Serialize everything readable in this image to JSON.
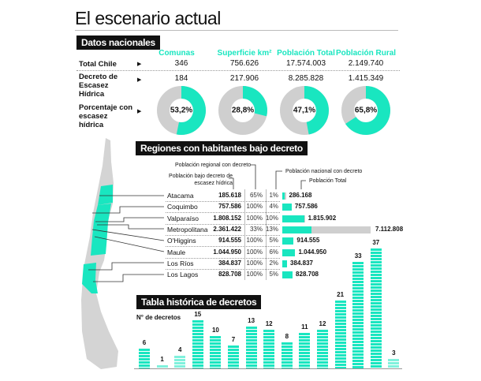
{
  "title": "El escenario actual",
  "national": {
    "label": "Datos nacionales",
    "headers": [
      "Comunas",
      "Superficie km²",
      "Población Total",
      "Población Rural"
    ],
    "rows": [
      {
        "label": "Total Chile",
        "values": [
          "346",
          "756.626",
          "17.574.003",
          "2.149.740"
        ]
      },
      {
        "label": "Decreto de Escasez Hídrica",
        "values": [
          "184",
          "217.906",
          "8.285.828",
          "1.415.349"
        ]
      }
    ],
    "pct_label": "Porcentaje con escasez hídrica",
    "percentages": [
      {
        "text": "53,2%",
        "value": 53.2
      },
      {
        "text": "28,8%",
        "value": 28.8
      },
      {
        "text": "47,1%",
        "value": 47.1
      },
      {
        "text": "65,8%",
        "value": 65.8
      }
    ]
  },
  "regions": {
    "label": "Regiones con habitantes bajo decreto",
    "legend": {
      "pop_decree": "Población bajo decreto de escasez hídrica",
      "regional": "Población regional con decreto",
      "national": "Población nacional con decreto",
      "total": "Población Total"
    },
    "rows": [
      {
        "name": "Atacama",
        "decree": "185.618",
        "regional": "65%",
        "national": "1%",
        "total": "286.168",
        "total_num": 286168,
        "decree_num": 185618
      },
      {
        "name": "Coquimbo",
        "decree": "757.586",
        "regional": "100%",
        "national": "4%",
        "total": "757.586",
        "total_num": 757586,
        "decree_num": 757586
      },
      {
        "name": "Valparaíso",
        "decree": "1.808.152",
        "regional": "100%",
        "national": "10%",
        "total": "1.815.902",
        "total_num": 1815902,
        "decree_num": 1808152
      },
      {
        "name": "Metropolitana",
        "decree": "2.361.422",
        "regional": "33%",
        "national": "13%",
        "total": "7.112.808",
        "total_num": 7112808,
        "decree_num": 2361422
      },
      {
        "name": "O'Higgins",
        "decree": "914.555",
        "regional": "100%",
        "national": "5%",
        "total": "914.555",
        "total_num": 914555,
        "decree_num": 914555
      },
      {
        "name": "Maule",
        "decree": "1.044.950",
        "regional": "100%",
        "national": "6%",
        "total": "1.044.950",
        "total_num": 1044950,
        "decree_num": 1044950
      },
      {
        "name": "Los Ríos",
        "decree": "384.837",
        "regional": "100%",
        "national": "2%",
        "total": "384.837",
        "total_num": 384837,
        "decree_num": 384837
      },
      {
        "name": "Los Lagos",
        "decree": "828.708",
        "regional": "100%",
        "national": "5%",
        "total": "828.708",
        "total_num": 828708,
        "decree_num": 828708
      }
    ]
  },
  "chart_data": {
    "type": "bar",
    "title": "Tabla histórica de decretos",
    "ylabel": "N° de decretos",
    "values": [
      6,
      1,
      4,
      15,
      10,
      7,
      13,
      12,
      8,
      11,
      12,
      21,
      33,
      37,
      3
    ],
    "ylim": [
      0,
      37
    ]
  },
  "colors": {
    "accent": "#19e6c0",
    "gray": "#cfcfcf"
  }
}
